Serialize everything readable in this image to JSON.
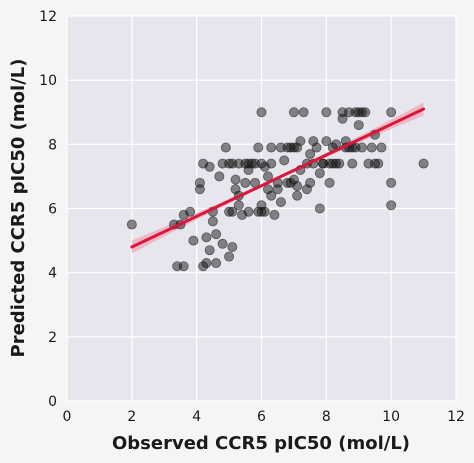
{
  "chart_data": {
    "type": "scatter",
    "title": "",
    "xlabel": "Observed CCR5 pIC50 (mol/L)",
    "ylabel": "Predicted CCR5 pIC50 (mol/L)",
    "xlim": [
      0,
      12
    ],
    "ylim": [
      0,
      12
    ],
    "xticks": [
      "0",
      "2",
      "4",
      "6",
      "8",
      "10",
      "12"
    ],
    "yticks": [
      "0",
      "2",
      "4",
      "6",
      "8",
      "10",
      "12"
    ],
    "grid": true,
    "colors": {
      "background": "#f5f5f5",
      "plot_background": "#e6e6ee",
      "grid": "#ffffff",
      "points": "#111111",
      "regression_line": "#d6193c",
      "confidence_band": "#f2a6b6"
    },
    "regression": {
      "x": [
        2,
        11
      ],
      "y": [
        4.8,
        9.1
      ],
      "band_halfwidth_ends": 0.2,
      "band_halfwidth_mid": 0.06
    },
    "series": [
      {
        "x": [
          2.0,
          3.3,
          3.4,
          3.5,
          3.6,
          3.6,
          3.8,
          3.9,
          4.1,
          4.1,
          4.2,
          4.2,
          4.3,
          4.3,
          4.4,
          4.4,
          4.5,
          4.5,
          4.6,
          4.6,
          4.7,
          4.8,
          4.9,
          5.0,
          5.0,
          5.0,
          5.1,
          5.1,
          5.2,
          5.2,
          5.3,
          5.3,
          5.4,
          5.5,
          5.5,
          5.6,
          5.6,
          5.7,
          5.8,
          5.9,
          5.9,
          6.0,
          6.0,
          6.0,
          6.1,
          6.1,
          6.2,
          6.3,
          6.3,
          6.4,
          6.5,
          6.6,
          6.7,
          6.8,
          6.9,
          7.0,
          7.0,
          7.1,
          7.1,
          7.2,
          7.3,
          7.4,
          7.5,
          7.6,
          7.7,
          7.8,
          7.9,
          8.0,
          8.1,
          8.2,
          8.3,
          8.4,
          8.5,
          8.6,
          8.7,
          8.8,
          8.9,
          9.0,
          9.1,
          9.3,
          9.5,
          9.6,
          10.0,
          10.0,
          10.0,
          11.0,
          6.0,
          6.5,
          7.2,
          7.8,
          8.3,
          8.8,
          9.4,
          5.8,
          6.3,
          7.0,
          7.6,
          8.1,
          8.6,
          9.1,
          9.7,
          5.3,
          5.6,
          6.8,
          7.4,
          8.0,
          8.5,
          9.2,
          6.6,
          7.1,
          7.9,
          8.7,
          9.0,
          4.8,
          5.1,
          6.2,
          6.9,
          7.5,
          8.2,
          8.9,
          9.5
        ],
        "y": [
          5.5,
          5.5,
          4.2,
          5.5,
          5.8,
          4.2,
          5.9,
          5.0,
          6.8,
          6.6,
          7.4,
          4.2,
          5.1,
          4.3,
          7.3,
          4.7,
          5.9,
          5.6,
          4.3,
          5.2,
          7.0,
          4.9,
          7.9,
          4.5,
          5.9,
          7.4,
          4.8,
          7.4,
          6.6,
          6.9,
          7.4,
          6.4,
          5.8,
          7.4,
          6.8,
          7.2,
          5.9,
          7.4,
          6.8,
          7.9,
          5.9,
          6.1,
          7.4,
          9.0,
          5.9,
          7.3,
          7.0,
          6.4,
          7.9,
          5.8,
          6.6,
          6.2,
          7.5,
          6.8,
          7.9,
          6.9,
          9.0,
          6.4,
          7.9,
          7.2,
          9.0,
          6.6,
          7.7,
          8.1,
          7.9,
          7.1,
          7.4,
          8.1,
          7.4,
          7.9,
          8.0,
          7.4,
          9.0,
          7.9,
          9.0,
          7.4,
          9.0,
          8.6,
          7.9,
          7.4,
          8.3,
          7.4,
          9.0,
          6.8,
          6.1,
          7.4,
          5.9,
          6.8,
          8.1,
          6.0,
          7.4,
          7.9,
          7.9,
          7.4,
          7.4,
          7.9,
          7.4,
          6.8,
          8.1,
          9.0,
          7.9,
          6.1,
          7.4,
          7.9,
          7.4,
          9.0,
          8.8,
          9.0,
          7.9,
          6.7,
          7.4,
          7.9,
          9.0,
          7.4,
          5.9,
          6.6,
          6.8,
          6.8,
          7.4,
          7.9,
          7.4
        ]
      }
    ]
  }
}
